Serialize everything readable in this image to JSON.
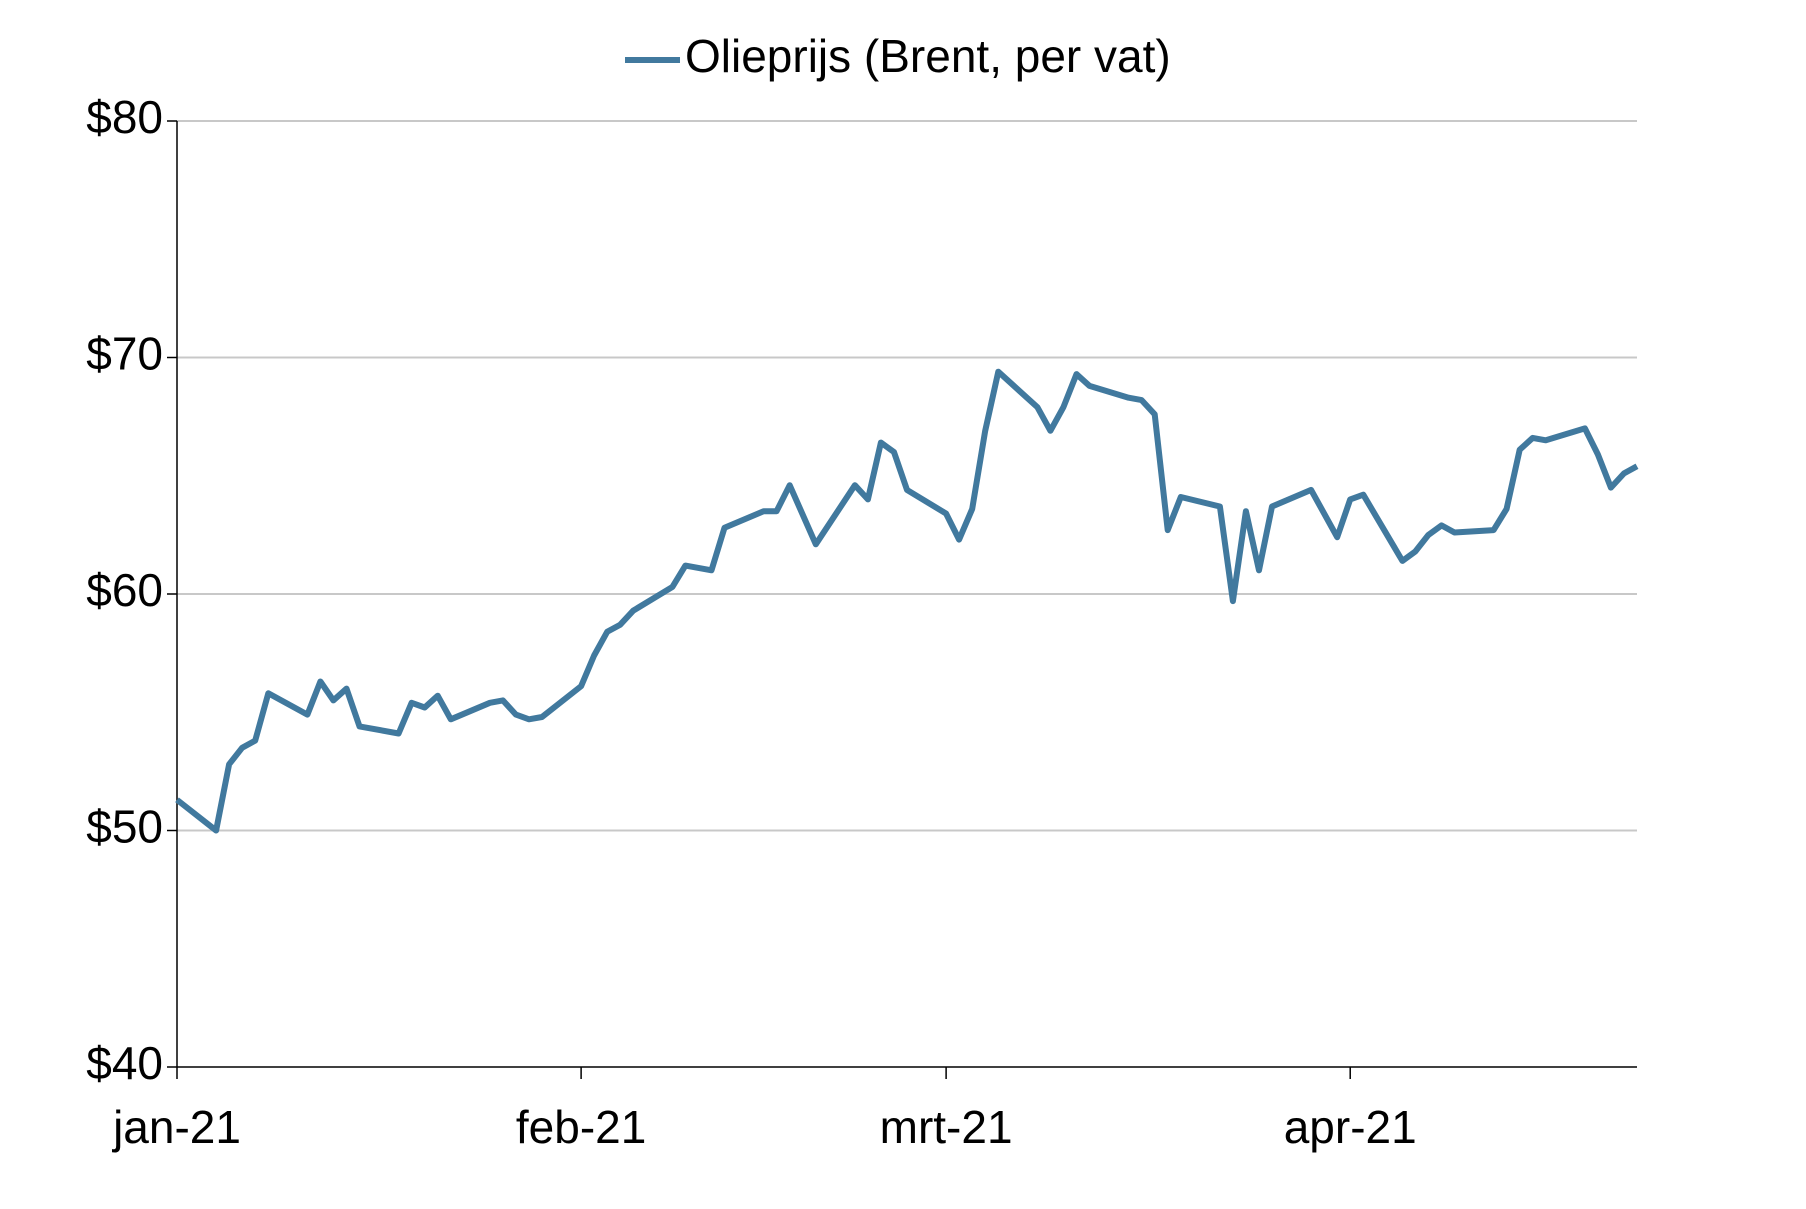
{
  "chart_data": {
    "type": "line",
    "x": [
      0,
      3,
      4,
      5,
      6,
      7,
      10,
      11,
      12,
      13,
      14,
      17,
      18,
      19,
      20,
      21,
      24,
      25,
      26,
      27,
      28,
      31,
      32,
      33,
      34,
      35,
      38,
      39,
      41,
      42,
      45,
      46,
      47,
      49,
      52,
      53,
      54,
      55,
      56,
      59,
      60,
      61,
      62,
      63,
      66,
      67,
      68,
      69,
      70,
      73,
      74,
      75,
      76,
      77,
      80,
      81,
      82,
      83,
      84,
      87,
      89,
      90,
      91,
      94,
      95,
      96,
      97,
      98,
      101,
      102,
      103,
      104,
      105,
      108,
      109,
      110,
      111,
      112
    ],
    "series": [
      {
        "name": "Olieprijs (Brent, per vat)",
        "color": "#41799e",
        "values": [
          51.3,
          50.0,
          52.8,
          53.5,
          53.8,
          55.8,
          54.9,
          56.3,
          55.5,
          56.0,
          54.4,
          54.1,
          55.4,
          55.2,
          55.7,
          54.7,
          55.4,
          55.5,
          54.9,
          54.7,
          54.8,
          56.1,
          57.4,
          58.4,
          58.7,
          59.3,
          60.3,
          61.2,
          61.0,
          62.8,
          63.5,
          63.5,
          64.6,
          62.1,
          64.6,
          64.0,
          66.4,
          66.0,
          64.4,
          63.4,
          62.3,
          63.6,
          66.9,
          69.4,
          67.9,
          66.9,
          67.9,
          69.3,
          68.8,
          68.3,
          68.2,
          67.6,
          62.7,
          64.1,
          63.7,
          59.7,
          63.5,
          61.0,
          63.7,
          64.4,
          62.4,
          64.0,
          64.2,
          61.4,
          61.8,
          62.5,
          62.9,
          62.6,
          62.7,
          63.6,
          66.1,
          66.6,
          66.5,
          67.0,
          65.9,
          64.5,
          65.1,
          65.4
        ]
      }
    ],
    "xlim": [
      0,
      112
    ],
    "xticks": [
      {
        "value": 0,
        "label": "jan-21"
      },
      {
        "value": 31,
        "label": "feb-21"
      },
      {
        "value": 59,
        "label": "mrt-21"
      },
      {
        "value": 90,
        "label": "apr-21"
      }
    ],
    "ylim": [
      40,
      80
    ],
    "yticks": [
      {
        "value": 40,
        "label": "$40"
      },
      {
        "value": 50,
        "label": "$50"
      },
      {
        "value": 60,
        "label": "$60"
      },
      {
        "value": 70,
        "label": "$70"
      },
      {
        "value": 80,
        "label": "$80"
      }
    ],
    "grid": true,
    "legend": "top"
  }
}
